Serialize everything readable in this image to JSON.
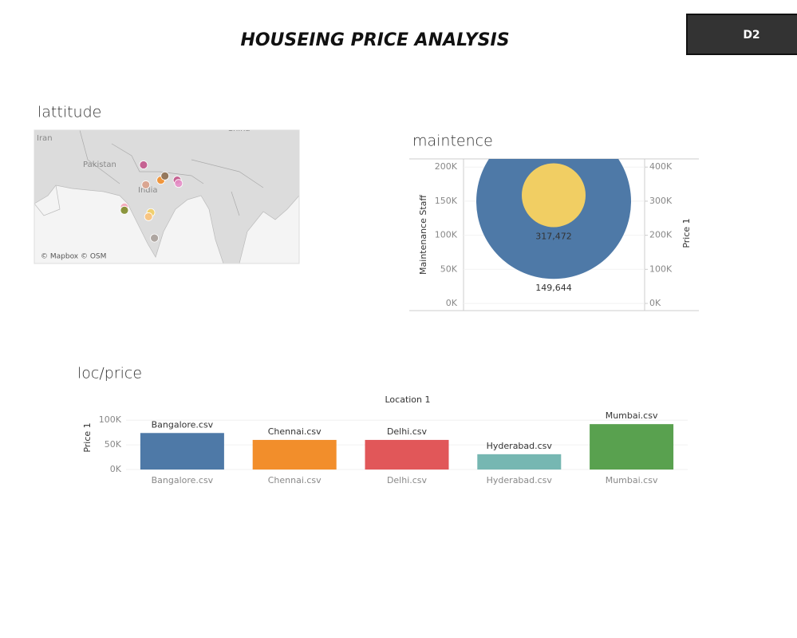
{
  "header": {
    "title": "HOUSEING PRICE ANALYSIS",
    "button": "D2"
  },
  "chart_data": [
    {
      "type": "map",
      "title": "lattitude",
      "place_labels": [
        "Iran",
        "Pakistan",
        "India",
        "China"
      ],
      "attribution": "© Mapbox © OSM",
      "x": [
        77.2,
        77.7,
        81.0,
        81.9,
        84.6,
        84.9,
        73.0,
        73.0,
        78.8,
        78.3,
        79.6
      ],
      "y": [
        28.6,
        24.3,
        25.3,
        26.2,
        25.3,
        24.6,
        19.5,
        18.8,
        18.3,
        17.4,
        12.8
      ],
      "colors": [
        "#c2548a",
        "#d9a08a",
        "#f28e2b",
        "#8c6d4f",
        "#c2548a",
        "#e58fc8",
        "#f4a6b8",
        "#7f8c2a",
        "#f1ce63",
        "#f9c27a",
        "#a8a09a"
      ],
      "xlim": [
        53.2,
        111.4
      ],
      "ylim": [
        7.3,
        36.1
      ]
    },
    {
      "type": "circle",
      "title": "maintence",
      "y_label": "Maintenance Staff",
      "y2_label": "Price 1",
      "series": [
        {
          "color": "#4e79a7",
          "values": [
            149644
          ],
          "value_labels": [
            "149,644"
          ]
        },
        {
          "color": "#f1ce63",
          "values": [
            317472
          ],
          "value_labels": [
            "317,472"
          ],
          "axis": "y2"
        }
      ],
      "ylim": [
        0,
        212000
      ],
      "yticks": [
        {
          "value": 0,
          "label": "0K"
        },
        {
          "value": 50000,
          "label": "50K"
        },
        {
          "value": 100000,
          "label": "100K"
        },
        {
          "value": 150000,
          "label": "150K"
        },
        {
          "value": 200000,
          "label": "200K"
        }
      ],
      "y2lim": [
        0,
        424000
      ],
      "y2ticks": [
        {
          "value": 0,
          "label": "0K"
        },
        {
          "value": 100000,
          "label": "100K"
        },
        {
          "value": 200000,
          "label": "200K"
        },
        {
          "value": 300000,
          "label": "300K"
        },
        {
          "value": 400000,
          "label": "400K"
        }
      ]
    },
    {
      "type": "bar",
      "title": "loc/price",
      "x_label": "Location 1",
      "y_label": "Price 1",
      "categories": [
        "Bangalore.csv",
        "Chennai.csv",
        "Delhi.csv",
        "Hyderabad.csv",
        "Mumbai.csv"
      ],
      "values": [
        74000,
        60000,
        60000,
        31000,
        92000
      ],
      "colors": [
        "#4e79a7",
        "#f28e2b",
        "#e15759",
        "#76b7b2",
        "#59a14f"
      ],
      "ylim": [
        0,
        123000
      ],
      "yticks": [
        {
          "value": 0,
          "label": "0K"
        },
        {
          "value": 50000,
          "label": "50K"
        },
        {
          "value": 100000,
          "label": "100K"
        }
      ],
      "grid": true
    }
  ]
}
